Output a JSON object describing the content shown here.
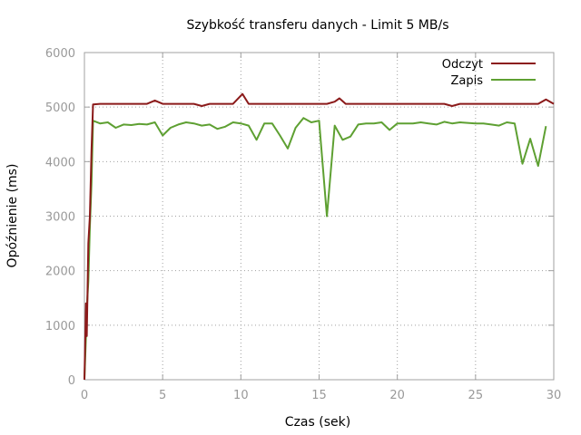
{
  "chart_data": {
    "type": "line",
    "title": "Szybkość transferu danych - Limit 5 MB/s",
    "xlabel": "Czas (sek)",
    "ylabel": "Opóźnienie (ms)",
    "xlim": [
      0,
      30
    ],
    "ylim": [
      0,
      6000
    ],
    "xticks": [
      0,
      5,
      10,
      15,
      20,
      25,
      30
    ],
    "yticks": [
      0,
      1000,
      2000,
      3000,
      4000,
      5000,
      6000
    ],
    "grid": true,
    "legend_position": "top-right",
    "series": [
      {
        "name": "Odczyt",
        "color": "#8b1a1a",
        "points": [
          [
            0,
            0
          ],
          [
            0.1,
            1400
          ],
          [
            0.15,
            800
          ],
          [
            0.25,
            2500
          ],
          [
            0.35,
            3000
          ],
          [
            0.45,
            4200
          ],
          [
            0.55,
            5050
          ],
          [
            1,
            5060
          ],
          [
            2,
            5060
          ],
          [
            3,
            5060
          ],
          [
            4,
            5060
          ],
          [
            4.5,
            5120
          ],
          [
            5,
            5060
          ],
          [
            6,
            5060
          ],
          [
            7,
            5060
          ],
          [
            7.5,
            5020
          ],
          [
            8,
            5060
          ],
          [
            9,
            5060
          ],
          [
            9.5,
            5060
          ],
          [
            10.1,
            5240
          ],
          [
            10.5,
            5060
          ],
          [
            11,
            5060
          ],
          [
            12,
            5060
          ],
          [
            13,
            5060
          ],
          [
            14,
            5060
          ],
          [
            15,
            5060
          ],
          [
            15.5,
            5060
          ],
          [
            16,
            5100
          ],
          [
            16.3,
            5160
          ],
          [
            16.7,
            5060
          ],
          [
            17,
            5060
          ],
          [
            18,
            5060
          ],
          [
            19,
            5060
          ],
          [
            20,
            5060
          ],
          [
            21,
            5060
          ],
          [
            22,
            5060
          ],
          [
            23,
            5060
          ],
          [
            23.5,
            5020
          ],
          [
            24,
            5060
          ],
          [
            25,
            5060
          ],
          [
            26,
            5060
          ],
          [
            27,
            5060
          ],
          [
            28,
            5060
          ],
          [
            29,
            5060
          ],
          [
            29.5,
            5140
          ],
          [
            30,
            5060
          ]
        ]
      },
      {
        "name": "Zapis",
        "color": "#5ea032",
        "points": [
          [
            0,
            0
          ],
          [
            0.1,
            800
          ],
          [
            0.15,
            1300
          ],
          [
            0.25,
            1800
          ],
          [
            0.35,
            2800
          ],
          [
            0.45,
            3600
          ],
          [
            0.55,
            4750
          ],
          [
            1,
            4700
          ],
          [
            1.5,
            4720
          ],
          [
            2,
            4620
          ],
          [
            2.5,
            4680
          ],
          [
            3,
            4670
          ],
          [
            3.5,
            4690
          ],
          [
            4,
            4680
          ],
          [
            4.5,
            4720
          ],
          [
            5,
            4480
          ],
          [
            5.5,
            4620
          ],
          [
            6,
            4680
          ],
          [
            6.5,
            4720
          ],
          [
            7,
            4700
          ],
          [
            7.5,
            4660
          ],
          [
            8,
            4680
          ],
          [
            8.5,
            4600
          ],
          [
            9,
            4640
          ],
          [
            9.5,
            4720
          ],
          [
            10,
            4700
          ],
          [
            10.5,
            4660
          ],
          [
            11,
            4400
          ],
          [
            11.5,
            4700
          ],
          [
            12,
            4700
          ],
          [
            12.5,
            4480
          ],
          [
            13,
            4240
          ],
          [
            13.5,
            4620
          ],
          [
            14,
            4800
          ],
          [
            14.5,
            4720
          ],
          [
            15,
            4750
          ],
          [
            15.5,
            3000
          ],
          [
            16,
            4660
          ],
          [
            16.5,
            4400
          ],
          [
            17,
            4460
          ],
          [
            17.5,
            4680
          ],
          [
            18,
            4700
          ],
          [
            18.5,
            4700
          ],
          [
            19,
            4720
          ],
          [
            19.5,
            4580
          ],
          [
            20,
            4700
          ],
          [
            21,
            4700
          ],
          [
            21.5,
            4720
          ],
          [
            22,
            4700
          ],
          [
            22.5,
            4680
          ],
          [
            23,
            4730
          ],
          [
            23.5,
            4700
          ],
          [
            24,
            4720
          ],
          [
            25,
            4700
          ],
          [
            25.5,
            4700
          ],
          [
            26,
            4680
          ],
          [
            26.5,
            4660
          ],
          [
            27,
            4720
          ],
          [
            27.5,
            4700
          ],
          [
            28,
            3960
          ],
          [
            28.5,
            4420
          ],
          [
            29,
            3920
          ],
          [
            29.5,
            4650
          ]
        ]
      }
    ]
  }
}
